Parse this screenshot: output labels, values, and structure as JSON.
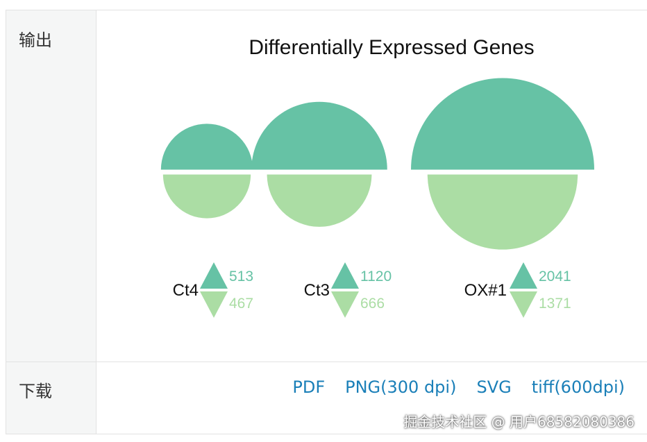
{
  "labels": {
    "output": "输出",
    "download": "下载"
  },
  "downloads": [
    "PDF",
    "PNG(300 dpi)",
    "SVG",
    "tiff(600dpi)"
  ],
  "watermark": "掘金技术社区 @ 用户68582080386",
  "colors": {
    "up": "#66c2a5",
    "down": "#abdda4",
    "link": "#1a7fb8"
  },
  "chart_data": {
    "type": "half-circle comparison",
    "title": "Differentially Expressed Genes",
    "categories": [
      "Ct4",
      "Ct3",
      "OX#1"
    ],
    "series": [
      {
        "values": [
          513,
          1120,
          2041
        ]
      },
      {
        "values": [
          467,
          666,
          1371
        ]
      }
    ]
  }
}
